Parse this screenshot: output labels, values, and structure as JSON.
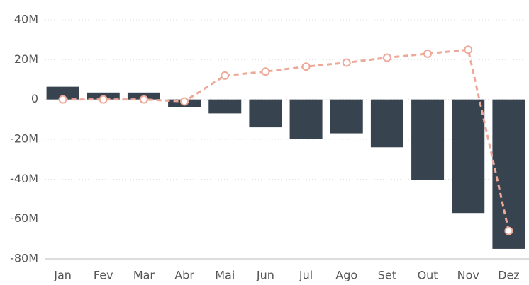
{
  "chart_data": {
    "type": "bar_line",
    "categories": [
      "Jan",
      "Fev",
      "Mar",
      "Abr",
      "Mai",
      "Jun",
      "Jul",
      "Ago",
      "Set",
      "Out",
      "Nov",
      "Dez"
    ],
    "series": [
      {
        "type": "bar",
        "color": "#37434f",
        "values": [
          6.4,
          3.5,
          3.5,
          -4,
          -7,
          -14,
          -20,
          -17,
          -24,
          -40.5,
          -57,
          -75
        ]
      },
      {
        "type": "line",
        "color": "#eea898",
        "values": [
          0,
          0,
          0,
          -1,
          12,
          14,
          16.5,
          18.5,
          21,
          23,
          25,
          -66
        ]
      }
    ],
    "ylim": [
      -80,
      40
    ],
    "yticks": [
      {
        "value": -80,
        "label": "-80M"
      },
      {
        "value": -60,
        "label": "-60M"
      },
      {
        "value": -40,
        "label": "-40M"
      },
      {
        "value": -20,
        "label": "-20M"
      },
      0,
      {
        "value": 20,
        "label": "20M"
      },
      {
        "value": 40,
        "label": "40M"
      }
    ],
    "grid": true
  }
}
